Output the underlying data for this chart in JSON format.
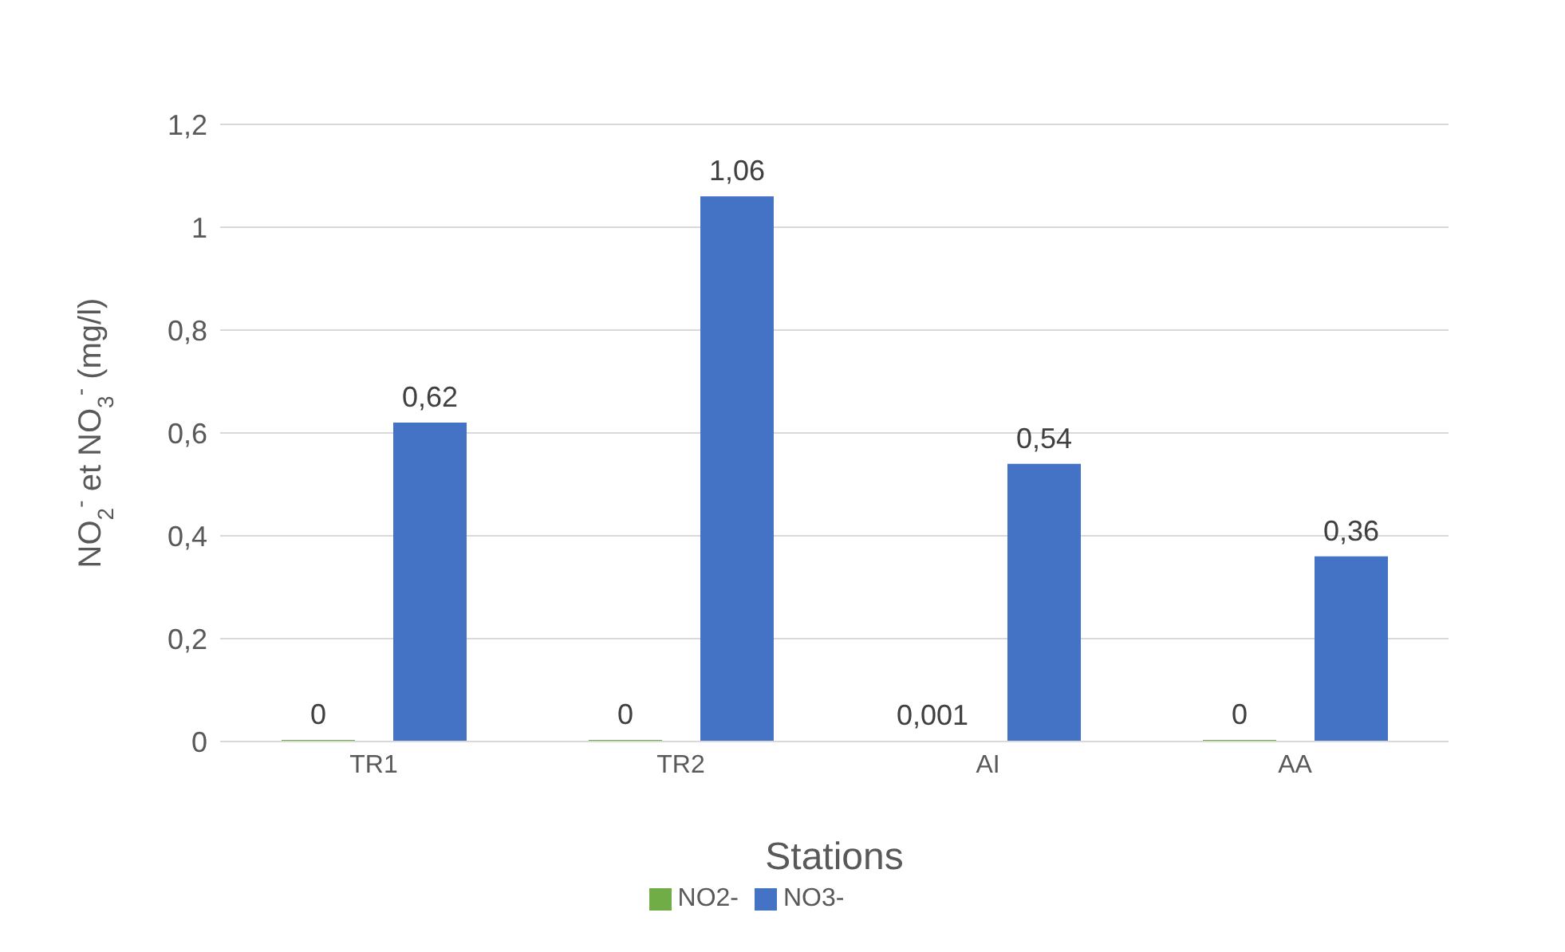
{
  "chart_data": {
    "type": "bar",
    "xlabel": "Stations",
    "ylabel": "NO$_{2}$$^{-}$ et NO$_{3}$$^{-}$ (mg/l)",
    "categories": [
      "TR1",
      "TR2",
      "AI",
      "AA"
    ],
    "series": [
      {
        "name": "NO2-",
        "color": "#70ad47",
        "values": [
          0,
          0,
          0.001,
          0
        ],
        "value_labels": [
          "0",
          "0",
          "0,001",
          "0"
        ]
      },
      {
        "name": "NO3-",
        "color": "#4472c4",
        "values": [
          0.62,
          1.06,
          0.54,
          0.36
        ],
        "value_labels": [
          "0,62",
          "1,06",
          "0,54",
          "0,36"
        ]
      }
    ],
    "ylim": [
      0,
      1.2
    ],
    "yticks": [
      {
        "value": 0,
        "label": "0"
      },
      {
        "value": 0.2,
        "label": "0,2"
      },
      {
        "value": 0.4,
        "label": "0,4"
      },
      {
        "value": 0.6,
        "label": "0,6"
      },
      {
        "value": 0.8,
        "label": "0,8"
      },
      {
        "value": 1,
        "label": "1"
      },
      {
        "value": 1.2,
        "label": "1,2"
      }
    ],
    "grid": "y",
    "legend": "bottom"
  }
}
